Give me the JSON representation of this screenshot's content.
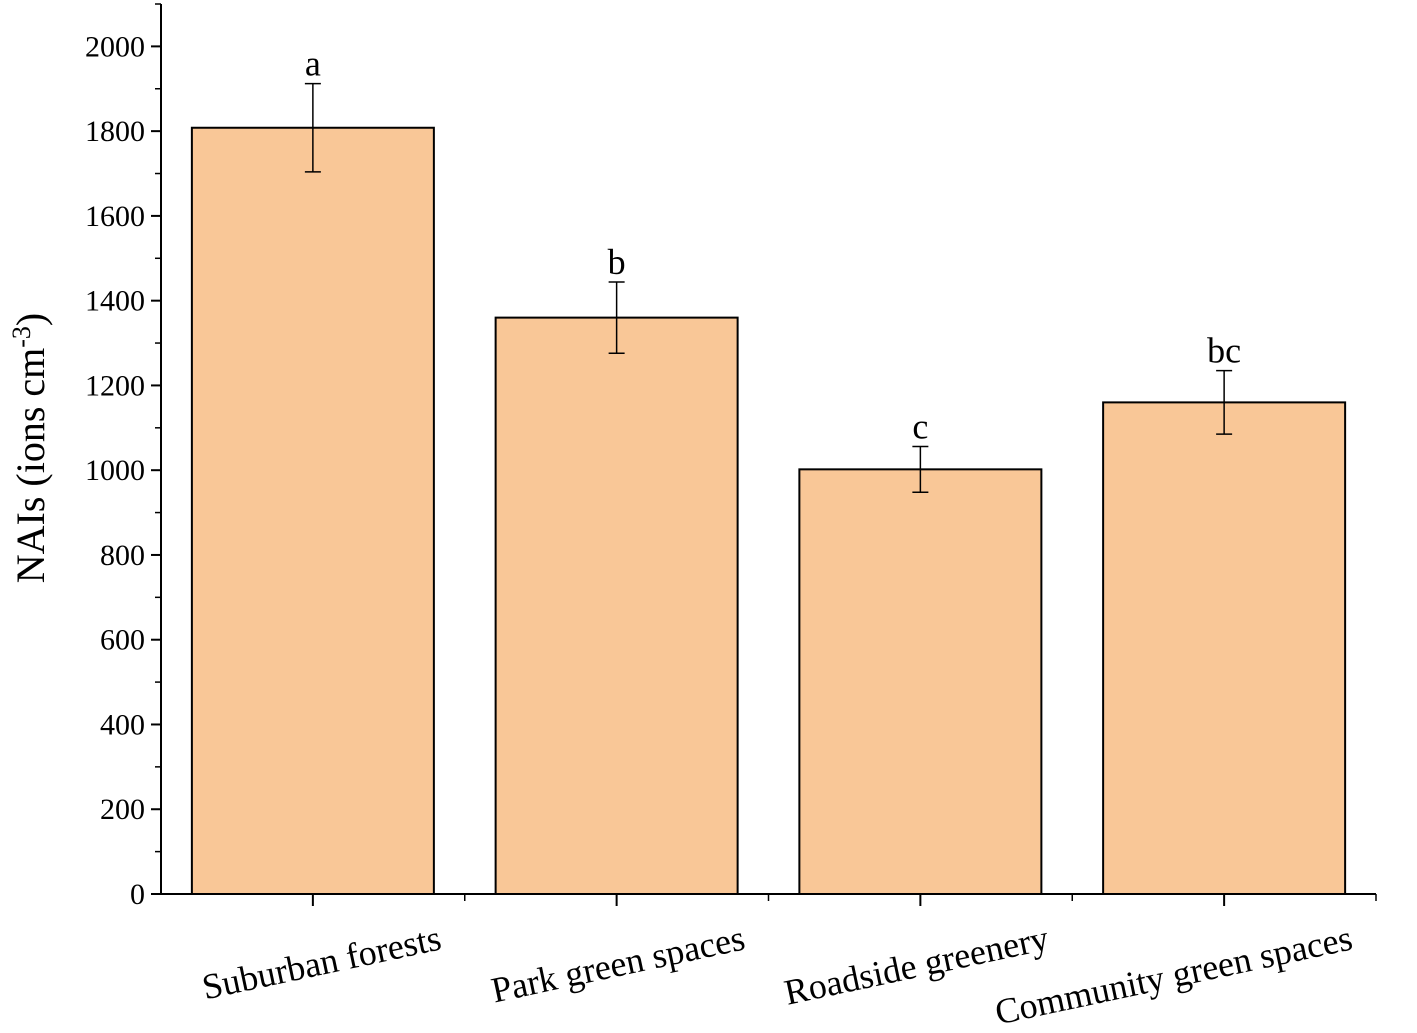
{
  "chart_data": {
    "type": "bar",
    "categories": [
      "Suburban forests",
      "Park green spaces",
      "Roadside greenery",
      "Community green spaces"
    ],
    "values": [
      1808,
      1360,
      1002,
      1160
    ],
    "errors": [
      104,
      84,
      54,
      75
    ],
    "significance_labels": [
      "a",
      "b",
      "c",
      "bc"
    ],
    "ylabel": "NAIs (ions cm",
    "ylabel_superscript": "-3",
    "ylabel_suffix": ")",
    "ylim": [
      0,
      2100
    ],
    "yticks": [
      0,
      200,
      400,
      600,
      800,
      1000,
      1200,
      1400,
      1600,
      1800,
      2000
    ],
    "bar_color": "#f9c797",
    "grid": false,
    "legend": "none"
  }
}
